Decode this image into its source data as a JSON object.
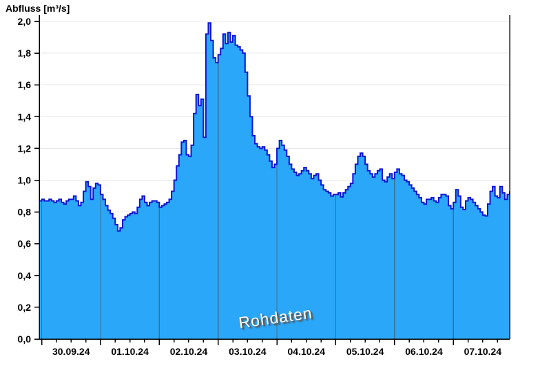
{
  "title": "Abfluss [m³/s]",
  "watermark": "Rohdaten",
  "colors": {
    "area_fill": "#2AA7F8",
    "series_line": "#0E16D0",
    "day_gridline": "#3C7191",
    "horizontal_gridline": "#E8E8E8",
    "axis": "#000000",
    "label_text": "#000000",
    "watermark_fill": "#FFFFFF",
    "watermark_shadow": "#5A5A5A",
    "background": "#FFFFFF"
  },
  "chart_data": {
    "type": "area",
    "title": "Abfluss [m³/s]",
    "ylabel": "Abfluss [m³/s]",
    "unit": "m³/s",
    "grid": true,
    "ylim": [
      0.0,
      2.0
    ],
    "y_tick_step": 0.2,
    "y_tick_labels": [
      "0,0",
      "0,2",
      "0,4",
      "0,6",
      "0,8",
      "1,0",
      "1,2",
      "1,4",
      "1,6",
      "1,8",
      "2,0"
    ],
    "x_day_labels": [
      "30.09.24",
      "01.10.24",
      "02.10.24",
      "03.10.24",
      "04.10.24",
      "05.10.24",
      "06.10.24",
      "07.10.24"
    ],
    "x_start": "29.09.24 23:00",
    "x_end": "07.10.24 23:00",
    "sample_interval_hours": 1,
    "day_boundary_hours": [
      1,
      25,
      49,
      73,
      97,
      121,
      145,
      169
    ],
    "minor_tick_every_hours": 6,
    "values": [
      0.87,
      0.88,
      0.87,
      0.87,
      0.88,
      0.87,
      0.86,
      0.87,
      0.88,
      0.86,
      0.85,
      0.87,
      0.88,
      0.88,
      0.9,
      0.87,
      0.84,
      0.86,
      0.93,
      0.99,
      0.96,
      0.88,
      0.95,
      0.98,
      0.97,
      0.91,
      0.88,
      0.84,
      0.81,
      0.79,
      0.76,
      0.72,
      0.68,
      0.7,
      0.75,
      0.77,
      0.78,
      0.79,
      0.8,
      0.79,
      0.83,
      0.88,
      0.9,
      0.86,
      0.84,
      0.86,
      0.87,
      0.87,
      0.86,
      0.83,
      0.84,
      0.85,
      0.86,
      0.88,
      0.93,
      1.0,
      1.09,
      1.16,
      1.24,
      1.25,
      1.16,
      1.15,
      1.22,
      1.42,
      1.54,
      1.47,
      1.51,
      1.27,
      1.92,
      1.99,
      1.88,
      1.77,
      1.74,
      1.79,
      1.83,
      1.92,
      1.86,
      1.93,
      1.87,
      1.91,
      1.85,
      1.84,
      1.82,
      1.8,
      1.68,
      1.53,
      1.4,
      1.28,
      1.23,
      1.21,
      1.2,
      1.21,
      1.19,
      1.16,
      1.12,
      1.08,
      1.1,
      1.2,
      1.25,
      1.22,
      1.19,
      1.15,
      1.1,
      1.07,
      1.05,
      1.03,
      1.04,
      1.06,
      1.08,
      1.06,
      1.04,
      1.01,
      1.03,
      1.04,
      1.0,
      0.97,
      0.94,
      0.93,
      0.92,
      0.9,
      0.91,
      0.91,
      0.92,
      0.895,
      0.92,
      0.94,
      0.96,
      0.98,
      1.04,
      1.1,
      1.15,
      1.17,
      1.15,
      1.1,
      1.06,
      1.04,
      1.02,
      1.04,
      1.06,
      1.07,
      1.0,
      0.99,
      1.02,
      1.04,
      1.01,
      1.05,
      1.07,
      1.04,
      1.03,
      1.0,
      0.99,
      0.97,
      0.95,
      0.93,
      0.91,
      0.89,
      0.86,
      0.85,
      0.88,
      0.88,
      0.89,
      0.87,
      0.86,
      0.89,
      0.91,
      0.91,
      0.9,
      0.84,
      0.82,
      0.86,
      0.94,
      0.9,
      0.83,
      0.815,
      0.87,
      0.89,
      0.88,
      0.86,
      0.84,
      0.82,
      0.8,
      0.78,
      0.775,
      0.85,
      0.93,
      0.96,
      0.9,
      0.89,
      0.96,
      0.92,
      0.88,
      0.91,
      0.93
    ]
  }
}
